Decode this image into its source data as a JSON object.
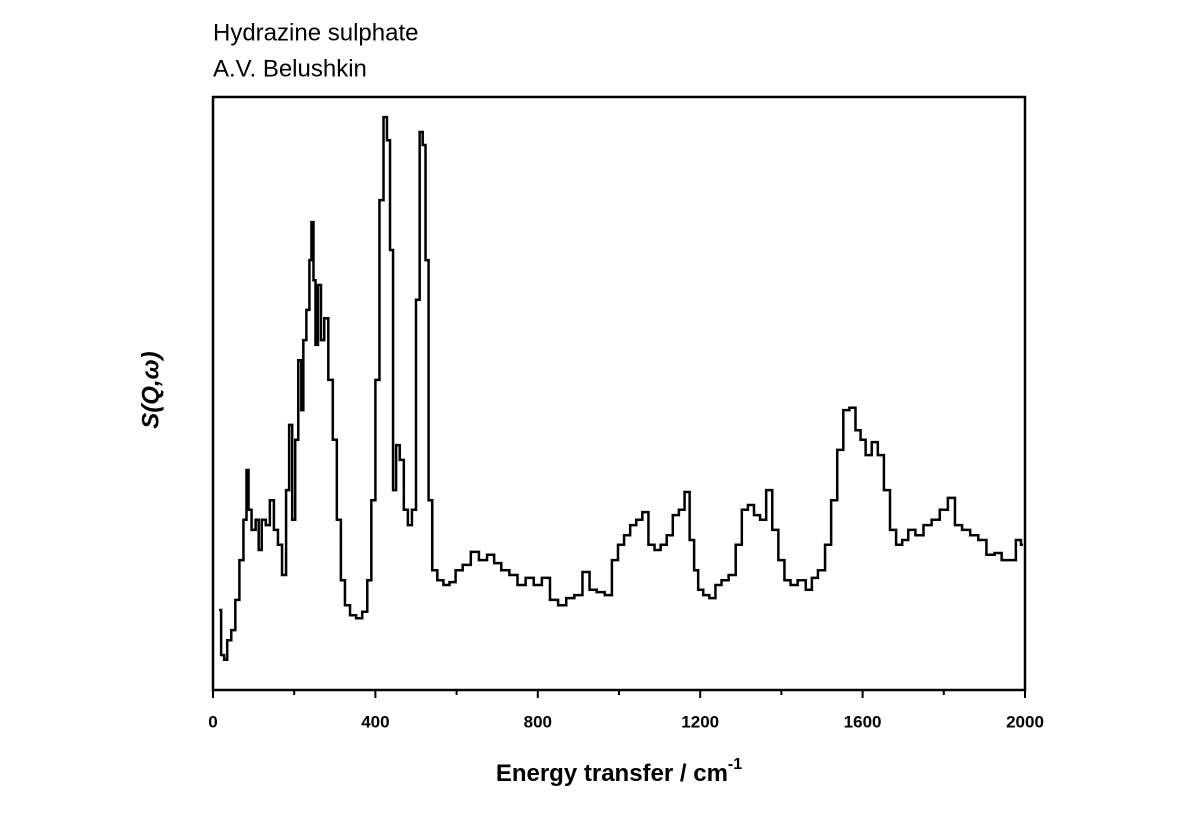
{
  "chart_data": {
    "type": "line",
    "title": "Hydrazine sulphate",
    "subtitle": "A.V. Belushkin",
    "x_label": {
      "text": "Energy transfer / cm",
      "superscript": "-1"
    },
    "y_label": "S(Q,ω)",
    "xlim": [
      0,
      2000
    ],
    "xticks": [
      0,
      400,
      800,
      1200,
      1600,
      2000
    ],
    "xticks_minor": [
      200,
      600,
      1000,
      1400,
      1800
    ],
    "ylim": [
      0,
      100
    ],
    "step": true,
    "x": [
      15,
      25,
      30,
      40,
      50,
      60,
      70,
      80,
      85,
      90,
      100,
      110,
      115,
      125,
      135,
      145,
      155,
      165,
      175,
      185,
      190,
      200,
      205,
      215,
      220,
      225,
      235,
      240,
      245,
      250,
      255,
      262,
      270,
      278,
      290,
      300,
      310,
      320,
      330,
      345,
      360,
      375,
      385,
      395,
      405,
      415,
      425,
      432,
      440,
      447,
      455,
      465,
      475,
      485,
      495,
      505,
      513,
      520,
      527,
      535,
      545,
      560,
      575,
      590,
      605,
      625,
      645,
      665,
      685,
      700,
      720,
      740,
      760,
      780,
      800,
      820,
      840,
      860,
      880,
      900,
      920,
      935,
      955,
      975,
      990,
      1005,
      1020,
      1035,
      1050,
      1065,
      1080,
      1095,
      1110,
      1125,
      1140,
      1155,
      1168,
      1180,
      1190,
      1200,
      1215,
      1230,
      1245,
      1260,
      1280,
      1295,
      1310,
      1325,
      1340,
      1355,
      1370,
      1385,
      1400,
      1415,
      1430,
      1450,
      1470,
      1480,
      1500,
      1515,
      1530,
      1545,
      1560,
      1575,
      1590,
      1600,
      1615,
      1630,
      1645,
      1660,
      1675,
      1690,
      1705,
      1720,
      1740,
      1760,
      1780,
      1800,
      1820,
      1835,
      1855,
      1875,
      1895,
      1915,
      1935,
      1950,
      1970,
      1985,
      1995
    ],
    "series": [
      {
        "color": "#000000",
        "values": [
          13.5,
          5.9,
          5.1,
          8.4,
          10.1,
          15.2,
          21.9,
          28.7,
          37.1,
          30.4,
          27.0,
          28.7,
          23.6,
          28.7,
          27.8,
          32.0,
          27.0,
          24.5,
          19.4,
          33.7,
          44.7,
          28.7,
          42.2,
          55.6,
          47.2,
          59.0,
          64.1,
          72.5,
          78.9,
          69.1,
          58.2,
          68.3,
          59.0,
          62.7,
          52.3,
          42.2,
          28.7,
          18.5,
          14.3,
          12.6,
          12.1,
          13.2,
          18.5,
          32.0,
          52.3,
          82.6,
          96.6,
          92.7,
          74.2,
          33.7,
          41.3,
          38.8,
          30.4,
          27.8,
          30.4,
          65.8,
          94.1,
          91.9,
          72.5,
          32.0,
          20.2,
          18.5,
          17.7,
          18.2,
          20.2,
          21.1,
          23.3,
          21.9,
          22.8,
          21.4,
          20.2,
          19.4,
          17.7,
          18.9,
          17.7,
          18.9,
          15.2,
          14.3,
          15.5,
          16.0,
          19.9,
          16.9,
          16.5,
          16.0,
          21.9,
          24.5,
          26.1,
          27.8,
          28.7,
          30.0,
          24.5,
          23.6,
          24.5,
          26.1,
          29.5,
          30.4,
          33.4,
          25.3,
          20.2,
          16.9,
          16.0,
          15.5,
          17.7,
          18.5,
          19.4,
          24.5,
          30.4,
          31.2,
          29.5,
          28.7,
          33.7,
          27.0,
          21.9,
          18.5,
          17.7,
          18.5,
          16.9,
          18.9,
          20.2,
          24.5,
          32.0,
          40.5,
          47.2,
          47.6,
          43.8,
          42.2,
          39.6,
          41.8,
          39.6,
          33.7,
          27.0,
          24.5,
          25.3,
          27.0,
          26.1,
          27.8,
          28.7,
          30.4,
          32.4,
          27.8,
          27.0,
          26.1,
          25.3,
          22.8,
          23.1,
          21.9,
          21.9,
          25.3,
          24.5
        ]
      }
    ]
  }
}
